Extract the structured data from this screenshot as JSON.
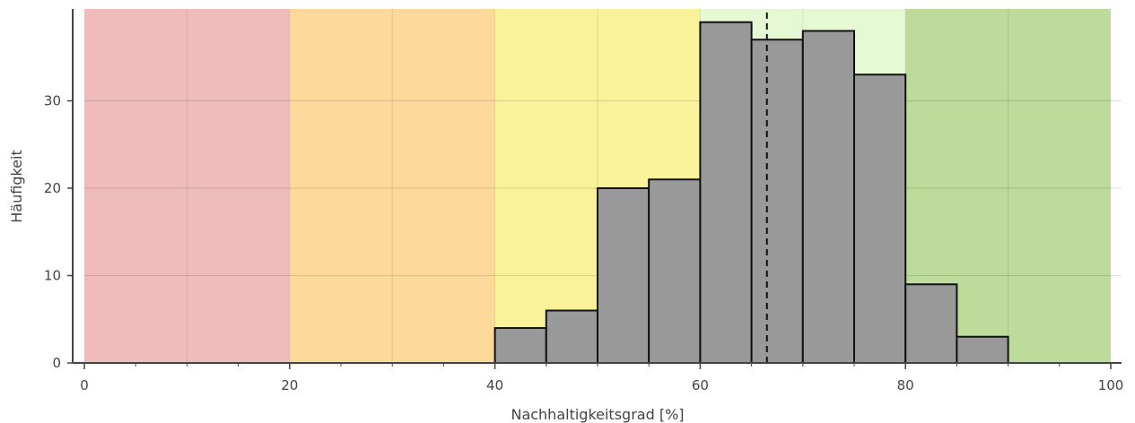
{
  "chart_data": {
    "type": "histogram",
    "title": "",
    "xlabel": "Nachhaltigkeitsgrad [%]",
    "ylabel": "Häufigkeit",
    "xlim": [
      0,
      100
    ],
    "ylim": [
      0,
      40
    ],
    "x_ticks": [
      "0",
      "20",
      "40",
      "60",
      "80",
      "100"
    ],
    "y_ticks": [
      "0",
      "10",
      "20",
      "30"
    ],
    "grid": true,
    "bin_width": 5,
    "bins": [
      {
        "start": 40,
        "end": 45,
        "count": 4
      },
      {
        "start": 45,
        "end": 50,
        "count": 6
      },
      {
        "start": 50,
        "end": 55,
        "count": 20
      },
      {
        "start": 55,
        "end": 60,
        "count": 21
      },
      {
        "start": 60,
        "end": 65,
        "count": 39
      },
      {
        "start": 65,
        "end": 70,
        "count": 37
      },
      {
        "start": 70,
        "end": 75,
        "count": 38
      },
      {
        "start": 75,
        "end": 80,
        "count": 33
      },
      {
        "start": 80,
        "end": 85,
        "count": 9
      },
      {
        "start": 85,
        "end": 90,
        "count": 3
      }
    ],
    "bar_color": "#999999",
    "reference_line": {
      "x": 66.5,
      "style": "dashed"
    },
    "background_zones": [
      {
        "start": 0,
        "end": 20,
        "color": "#efbcbb"
      },
      {
        "start": 20,
        "end": 40,
        "color": "#fdd99b"
      },
      {
        "start": 40,
        "end": 60,
        "color": "#faf29a"
      },
      {
        "start": 60,
        "end": 80,
        "color": "#e5f9d5"
      },
      {
        "start": 80,
        "end": 100,
        "color": "#bddb9b"
      }
    ]
  }
}
